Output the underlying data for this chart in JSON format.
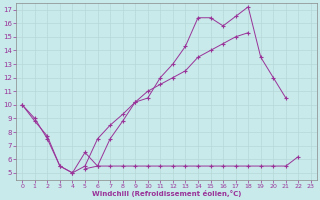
{
  "background_color": "#c8eaea",
  "grid_color": "#aadddd",
  "line_color": "#993399",
  "xlabel": "Windchill (Refroidissement éolien,°C)",
  "ylabel_ticks": [
    5,
    6,
    7,
    8,
    9,
    10,
    11,
    12,
    13,
    14,
    15,
    16,
    17
  ],
  "xlabel_ticks": [
    0,
    1,
    2,
    3,
    4,
    5,
    6,
    7,
    8,
    9,
    10,
    11,
    12,
    13,
    14,
    15,
    16,
    17,
    18,
    19,
    20,
    21,
    22,
    23
  ],
  "line1_y": [
    10,
    9,
    7.5,
    5.5,
    5,
    6.5,
    5.5,
    7.5,
    8.8,
    10.2,
    10.5,
    12.0,
    13.0,
    14.3,
    16.4,
    16.4,
    15.8,
    16.5,
    17.2,
    13.5,
    12.0,
    10.5,
    null,
    null
  ],
  "line2_y": [
    10,
    8.8,
    7.7,
    5.5,
    5.0,
    5.5,
    null,
    null,
    null,
    null,
    null,
    null,
    null,
    null,
    null,
    null,
    null,
    null,
    null,
    null,
    null,
    null,
    null,
    null
  ],
  "line2b_y": [
    null,
    null,
    null,
    null,
    null,
    null,
    7.5,
    8.5,
    9.3,
    10.2,
    11.0,
    11.5,
    12.0,
    12.5,
    13.5,
    14.0,
    14.5,
    15.0,
    15.3,
    null,
    null,
    null,
    null,
    null
  ],
  "line3_y": [
    null,
    null,
    null,
    null,
    null,
    5.3,
    5.5,
    5.5,
    5.5,
    5.5,
    5.5,
    5.5,
    5.5,
    5.5,
    5.5,
    5.5,
    5.5,
    5.5,
    5.5,
    5.5,
    5.5,
    5.5,
    6.2,
    null
  ],
  "line_smooth_x": [
    0,
    1,
    2,
    3,
    4,
    5,
    6,
    7,
    8,
    9,
    10,
    11,
    12,
    13,
    14,
    15,
    16,
    17,
    18,
    19,
    20,
    21
  ],
  "line_smooth_y": [
    10,
    8.8,
    7.7,
    5.5,
    5.0,
    5.5,
    7.5,
    8.5,
    9.3,
    10.2,
    11.0,
    11.5,
    12.0,
    12.5,
    13.5,
    14.0,
    14.5,
    15.0,
    15.3,
    null,
    null,
    null
  ],
  "ylim": [
    4.5,
    17.5
  ],
  "xlim": [
    -0.5,
    23.5
  ]
}
